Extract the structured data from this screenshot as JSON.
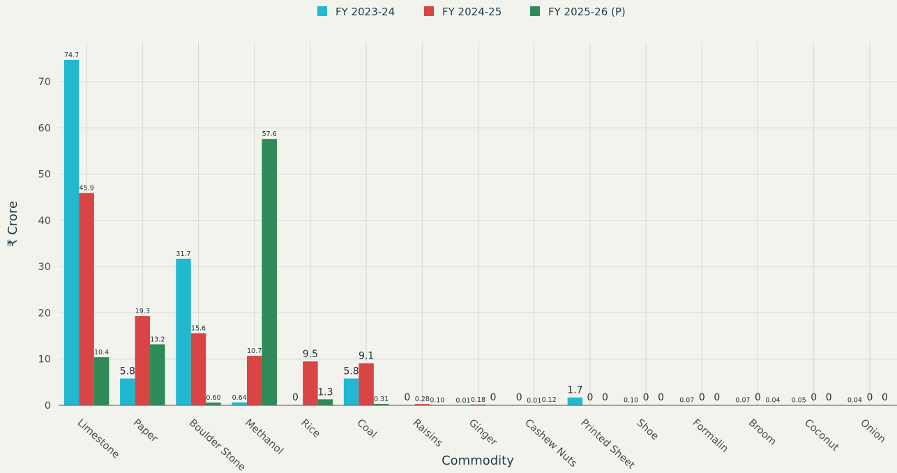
{
  "chart_data": {
    "type": "bar",
    "xlabel": "Commodity",
    "ylabel": "₹ Crore",
    "ylim": [
      0,
      78
    ],
    "yticks": [
      0,
      10,
      20,
      30,
      40,
      50,
      60,
      70
    ],
    "grid": true,
    "legend_position": "top",
    "categories": [
      "Limestone",
      "Paper",
      "Boulder Stone",
      "Methanol",
      "Rice",
      "Coal",
      "Raisins",
      "Ginger",
      "Cashew Nuts",
      "Printed Sheet",
      "Shoe",
      "Formalin",
      "Broom",
      "Coconut",
      "Onion"
    ],
    "series": [
      {
        "name": "FY 2023-24",
        "color": "#22b8cf",
        "values": [
          74.7,
          5.8,
          31.7,
          0.64,
          0,
          5.8,
          0,
          0.01,
          0,
          1.7,
          0.1,
          0.07,
          0.07,
          0.05,
          0.04
        ],
        "labels": [
          "74.7",
          "5.8",
          "31.7",
          "0.64",
          "0",
          "5.8",
          "0",
          "0.01",
          "0",
          "1.7",
          "0.10",
          "0.07",
          "0.07",
          "0.05",
          "0.04"
        ]
      },
      {
        "name": "FY 2024-25",
        "color": "#d94545",
        "values": [
          45.9,
          19.3,
          15.6,
          10.7,
          9.5,
          9.1,
          0.28,
          0.18,
          0.01,
          0,
          0,
          0,
          0,
          0,
          0
        ],
        "labels": [
          "45.9",
          "19.3",
          "15.6",
          "10.7",
          "9.5",
          "9.1",
          "0.28",
          "0.18",
          "0.01",
          "0",
          "0",
          "0",
          "0",
          "0",
          "0"
        ]
      },
      {
        "name": "FY 2025-26 (P)",
        "color": "#2e8a57",
        "values": [
          10.4,
          13.2,
          0.6,
          57.6,
          1.3,
          0.31,
          0.1,
          0,
          0.12,
          0,
          0,
          0,
          0.04,
          0,
          0
        ],
        "labels": [
          "10.4",
          "13.2",
          "0.60",
          "57.6",
          "1.3",
          "0.31",
          "0.10",
          "0",
          "0.12",
          "0",
          "0",
          "0",
          "0.04",
          "0",
          "0"
        ]
      }
    ]
  }
}
